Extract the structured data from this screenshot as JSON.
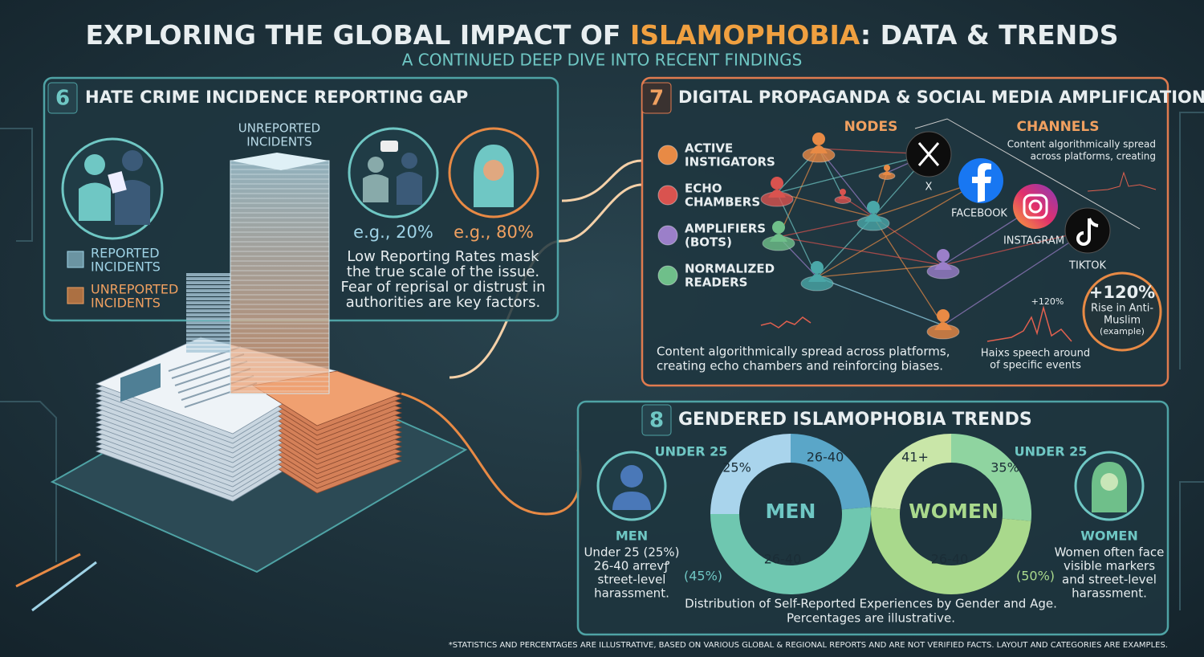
{
  "header": {
    "title_pre": "EXPLORING THE GLOBAL IMPACT OF ",
    "title_highlight": "ISLAMOPHOBIA",
    "title_post": ": DATA & TRENDS",
    "subtitle": "A CONTINUED DEEP DIVE INTO RECENT FINDINGS"
  },
  "panel_6": {
    "number": "6",
    "title": "HATE CRIME INCIDENCE REPORTING GAP",
    "tower_label": [
      "UNREPORTED",
      "INCIDENTS"
    ],
    "legend": [
      [
        "REPORTED",
        "INCIDENTS"
      ],
      [
        "UNREPORTED",
        "INCIDENTS"
      ]
    ],
    "stats": [
      "e.g., 20%",
      "e.g., 80%"
    ],
    "description": [
      "Low Reporting Rates mask",
      "the true scale of the issue.",
      "Fear of reprisal or distrust in",
      "authorities are key factors."
    ]
  },
  "panel_7": {
    "number": "7",
    "title": "DIGITAL PROPAGANDA & SOCIAL MEDIA AMPLIFICATION",
    "nodes_heading": "NODES",
    "channels_heading": "CHANNELS",
    "legend": [
      [
        "ACTIVE",
        "INSTIGATORS"
      ],
      [
        "ECHO",
        "CHAMBERS"
      ],
      [
        "AMPLIFIERS",
        "(BOTS)"
      ],
      [
        "NORMALIZED",
        "READERS"
      ]
    ],
    "channel_note": [
      "Content algorithmically spread",
      "across platforms, creating"
    ],
    "channels": [
      "X",
      "FACEBOOK",
      "INSTAGRAM",
      "TIKTOK"
    ],
    "spike_label": "+120%",
    "rise_value": "+120%",
    "rise_text": [
      "Rise in Anti-",
      "Muslim",
      "(example)"
    ],
    "spike_caption": [
      "Haixs speech around",
      "of specific events"
    ],
    "caption": [
      "Content algorithmically spread across platforms,",
      "creating echo chambers and reinforcing biases."
    ]
  },
  "panel_8": {
    "number": "8",
    "title": "GENDERED ISLAMOPHOBIA TRENDS",
    "men": {
      "age_heading": "UNDER 25",
      "ring_label": "MEN",
      "segments": [
        "25%",
        "26-40",
        "26-40"
      ],
      "bottom_pct": "(45%)",
      "label": "MEN",
      "text": [
        "Under 25 (25%)",
        "26-40 arrevꝭ",
        "street-level",
        "harassment."
      ]
    },
    "women": {
      "age_heading": "UNDER 25",
      "ring_label": "WOMEN",
      "segments": [
        "41+",
        "35%",
        "26-40"
      ],
      "bottom_pct": "(50%)",
      "label": "WOMEN",
      "text": [
        "Women often face",
        "visible markers",
        "and street-level",
        "harassment."
      ]
    },
    "caption": [
      "Distribution of Self-Reported Experiences by Gender and Age.",
      "Percentages are illustrative."
    ]
  },
  "footer": "*STATISTICS AND PERCENTAGES ARE ILLUSTRATIVE, BASED ON VARIOUS GLOBAL & REGIONAL REPORTS AND ARE NOT VERIFIED FACTS. LAYOUT AND CATEGORIES ARE EXAMPLES."
}
